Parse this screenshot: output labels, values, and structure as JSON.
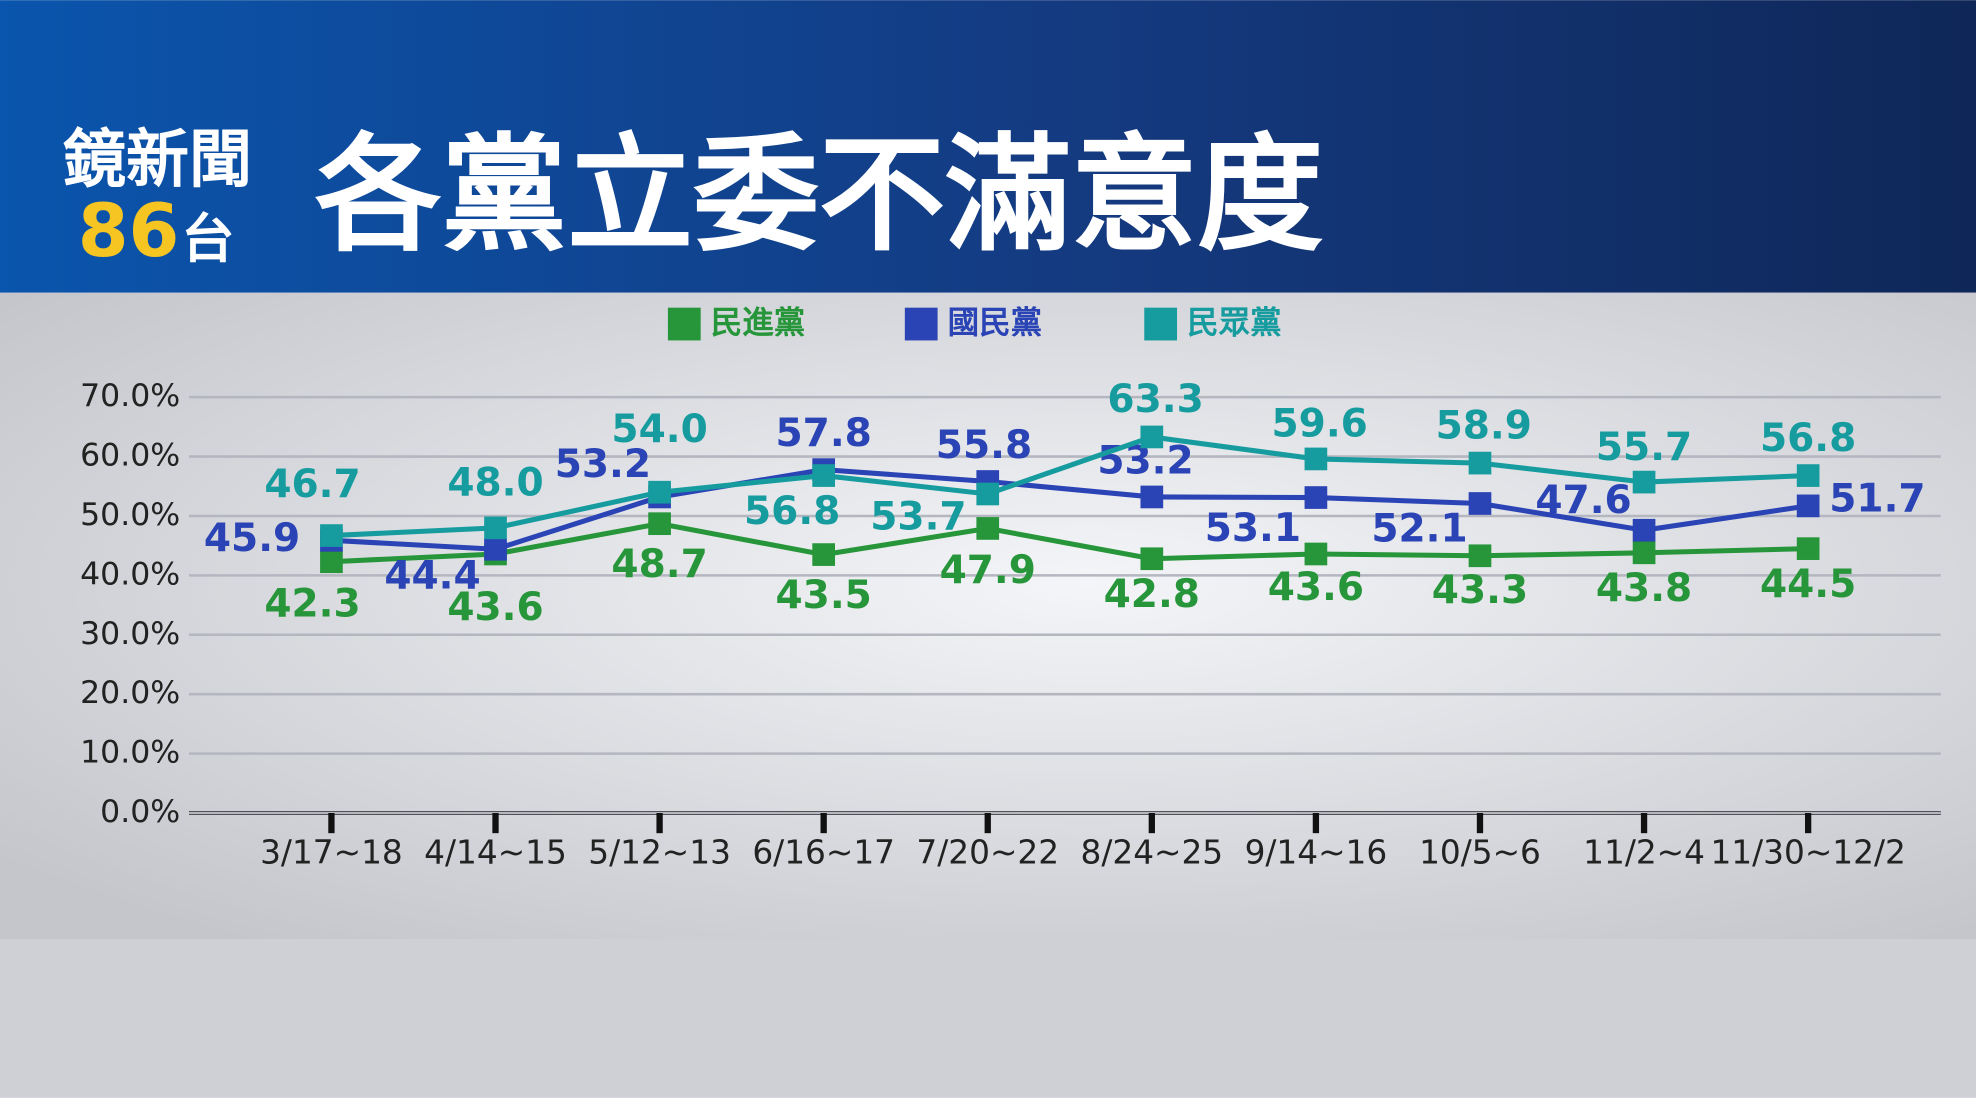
{
  "brand": {
    "name": "鏡新聞",
    "channel": "86",
    "suffix": "台"
  },
  "chart_data": {
    "type": "line",
    "title": "各黨立委不滿意度",
    "categories": [
      "3/17~18",
      "4/14~15",
      "5/12~13",
      "6/16~17",
      "7/20~22",
      "8/24~25",
      "9/14~16",
      "10/5~6",
      "11/2~4",
      "11/30~12/2"
    ],
    "series": [
      {
        "name": "民進黨",
        "color": "#27963a",
        "values": [
          42.3,
          43.6,
          48.7,
          43.5,
          47.9,
          42.8,
          43.6,
          43.3,
          43.8,
          44.5
        ],
        "value_labels": [
          "42.3",
          "43.6",
          "48.7",
          "43.5",
          "47.9",
          "42.8",
          "43.6",
          "43.3",
          "43.8",
          "44.5"
        ]
      },
      {
        "name": "國民黨",
        "color": "#2a43b5",
        "values": [
          45.9,
          44.4,
          53.2,
          57.8,
          55.8,
          53.2,
          53.1,
          52.1,
          47.6,
          51.7
        ],
        "value_labels": [
          "45.9",
          "44.4",
          "53.2",
          "57.8",
          "55.8",
          "53.2",
          "53.1",
          "52.1",
          "47.6",
          "51.7"
        ]
      },
      {
        "name": "民眾黨",
        "color": "#169c9e",
        "values": [
          46.7,
          48.0,
          54.0,
          56.8,
          53.7,
          63.3,
          59.6,
          58.9,
          55.7,
          56.8
        ],
        "value_labels": [
          "46.7",
          "48.0",
          "54.0",
          "56.8",
          "53.7",
          "63.3",
          "59.6",
          "58.9",
          "55.7",
          "56.8"
        ]
      }
    ],
    "ylim": [
      0,
      70
    ],
    "yticks": [
      {
        "value": 0,
        "label": "0.0%"
      },
      {
        "value": 10,
        "label": "10.0%"
      },
      {
        "value": 20,
        "label": "20.0%"
      },
      {
        "value": 30,
        "label": "30.0%"
      },
      {
        "value": 40,
        "label": "40.0%"
      },
      {
        "value": 50,
        "label": "50.0%"
      },
      {
        "value": 60,
        "label": "60.0%"
      },
      {
        "value": 70,
        "label": "70.0%"
      }
    ],
    "grid": true,
    "legend": "top"
  }
}
